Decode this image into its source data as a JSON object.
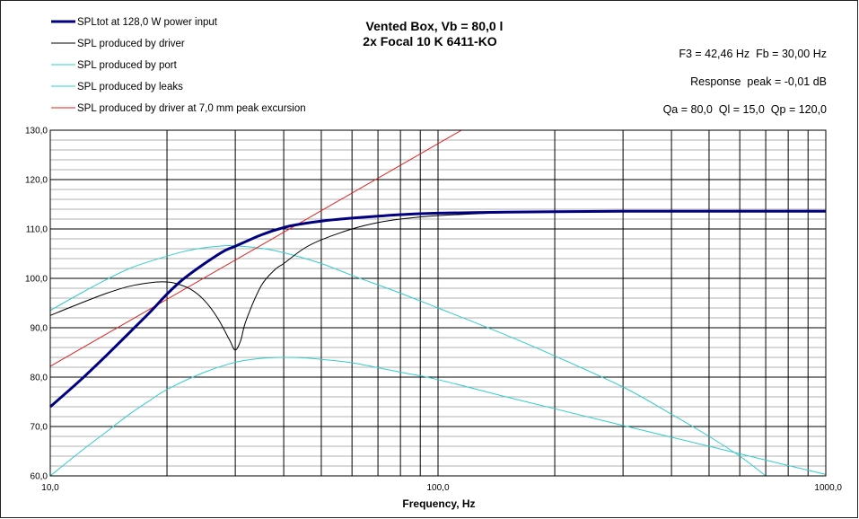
{
  "chart_data": {
    "type": "line",
    "title": [
      "Vented Box, Vb = 80,0 l",
      "2x Focal 10 K 6411-KO"
    ],
    "xlabel": "Frequency, Hz",
    "ylabel": "",
    "x_scale": "log",
    "xlim": [
      10,
      1000
    ],
    "ylim": [
      60,
      130
    ],
    "x_tick_labels": [
      {
        "value": 10,
        "label": "10,0"
      },
      {
        "value": 100,
        "label": "100,0"
      },
      {
        "value": 1000,
        "label": "1000,0"
      }
    ],
    "y_ticks": [
      60,
      70,
      80,
      90,
      100,
      110,
      120,
      130
    ],
    "y_tick_labels": [
      "60,0",
      "70,0",
      "80,0",
      "90,0",
      "100,0",
      "110,0",
      "120,0",
      "130,0"
    ],
    "minor_grid_y_step": 2,
    "grid": true,
    "legend_position": "top-left",
    "notes": [
      "F3 = 42,46 Hz  Fb = 30,00 Hz",
      "Response  peak = -0,01 dB",
      "Qa = 80,0  Ql = 15,0  Qp = 120,0"
    ],
    "series": [
      {
        "name": "SPLtot at 128,0 W power input",
        "color": "#000080",
        "width": 3,
        "points": [
          [
            10,
            74.0
          ],
          [
            12,
            79.5
          ],
          [
            14,
            84.5
          ],
          [
            16,
            89.0
          ],
          [
            18,
            93.0
          ],
          [
            20,
            96.8
          ],
          [
            22,
            99.8
          ],
          [
            25,
            103.0
          ],
          [
            28,
            105.5
          ],
          [
            30,
            106.5
          ],
          [
            35,
            108.8
          ],
          [
            40,
            110.3
          ],
          [
            45,
            111.1
          ],
          [
            50,
            111.6
          ],
          [
            60,
            112.2
          ],
          [
            70,
            112.6
          ],
          [
            80,
            112.9
          ],
          [
            100,
            113.2
          ],
          [
            150,
            113.4
          ],
          [
            200,
            113.5
          ],
          [
            300,
            113.6
          ],
          [
            500,
            113.6
          ],
          [
            1000,
            113.6
          ]
        ]
      },
      {
        "name": "SPL produced by driver",
        "color": "#000000",
        "width": 1,
        "points": [
          [
            10,
            92.5
          ],
          [
            12,
            95.0
          ],
          [
            14,
            97.0
          ],
          [
            16,
            98.4
          ],
          [
            18,
            99.1
          ],
          [
            19.5,
            99.3
          ],
          [
            21,
            99.0
          ],
          [
            23,
            97.8
          ],
          [
            25,
            95.5
          ],
          [
            27,
            92.0
          ],
          [
            29,
            87.5
          ],
          [
            30,
            85.5
          ],
          [
            31,
            87.5
          ],
          [
            32,
            91.5
          ],
          [
            35,
            98.5
          ],
          [
            38,
            101.8
          ],
          [
            40,
            103.0
          ],
          [
            45,
            106.0
          ],
          [
            50,
            107.8
          ],
          [
            60,
            110.0
          ],
          [
            70,
            111.3
          ],
          [
            80,
            112.0
          ],
          [
            100,
            112.7
          ],
          [
            150,
            113.3
          ],
          [
            200,
            113.5
          ],
          [
            300,
            113.6
          ],
          [
            500,
            113.6
          ],
          [
            1000,
            113.6
          ]
        ]
      },
      {
        "name": "SPL produced by port",
        "color": "#33CCCC",
        "width": 1,
        "points": [
          [
            10,
            93.5
          ],
          [
            12,
            97.0
          ],
          [
            14,
            99.8
          ],
          [
            16,
            102.0
          ],
          [
            18,
            103.4
          ],
          [
            20,
            104.5
          ],
          [
            22,
            105.4
          ],
          [
            25,
            106.2
          ],
          [
            28,
            106.6
          ],
          [
            30,
            106.6
          ],
          [
            35,
            106.1
          ],
          [
            40,
            105.2
          ],
          [
            50,
            103.0
          ],
          [
            60,
            100.6
          ],
          [
            80,
            97.0
          ],
          [
            100,
            94.0
          ],
          [
            150,
            88.5
          ],
          [
            200,
            84.3
          ],
          [
            300,
            78.0
          ],
          [
            400,
            72.5
          ],
          [
            500,
            68.0
          ],
          [
            600,
            64.0
          ],
          [
            700,
            60.0
          ]
        ]
      },
      {
        "name": "SPL produced by leaks",
        "color": "#33CCCC",
        "width": 1,
        "points": [
          [
            10,
            60.0
          ],
          [
            12,
            65.0
          ],
          [
            14,
            69.0
          ],
          [
            16,
            72.5
          ],
          [
            18,
            75.2
          ],
          [
            20,
            77.5
          ],
          [
            25,
            81.0
          ],
          [
            30,
            83.0
          ],
          [
            35,
            83.8
          ],
          [
            40,
            84.0
          ],
          [
            45,
            83.9
          ],
          [
            50,
            83.6
          ],
          [
            60,
            82.9
          ],
          [
            80,
            81.0
          ],
          [
            100,
            79.5
          ],
          [
            150,
            76.0
          ],
          [
            200,
            73.6
          ],
          [
            300,
            70.2
          ],
          [
            500,
            66.0
          ],
          [
            700,
            63.2
          ],
          [
            1000,
            60.3
          ]
        ]
      },
      {
        "name": "SPL produced by driver at 7,0 mm peak excursion",
        "color": "#E02020",
        "width": 1,
        "points": [
          [
            10,
            82.2
          ],
          [
            115,
            130.0
          ]
        ]
      }
    ]
  }
}
